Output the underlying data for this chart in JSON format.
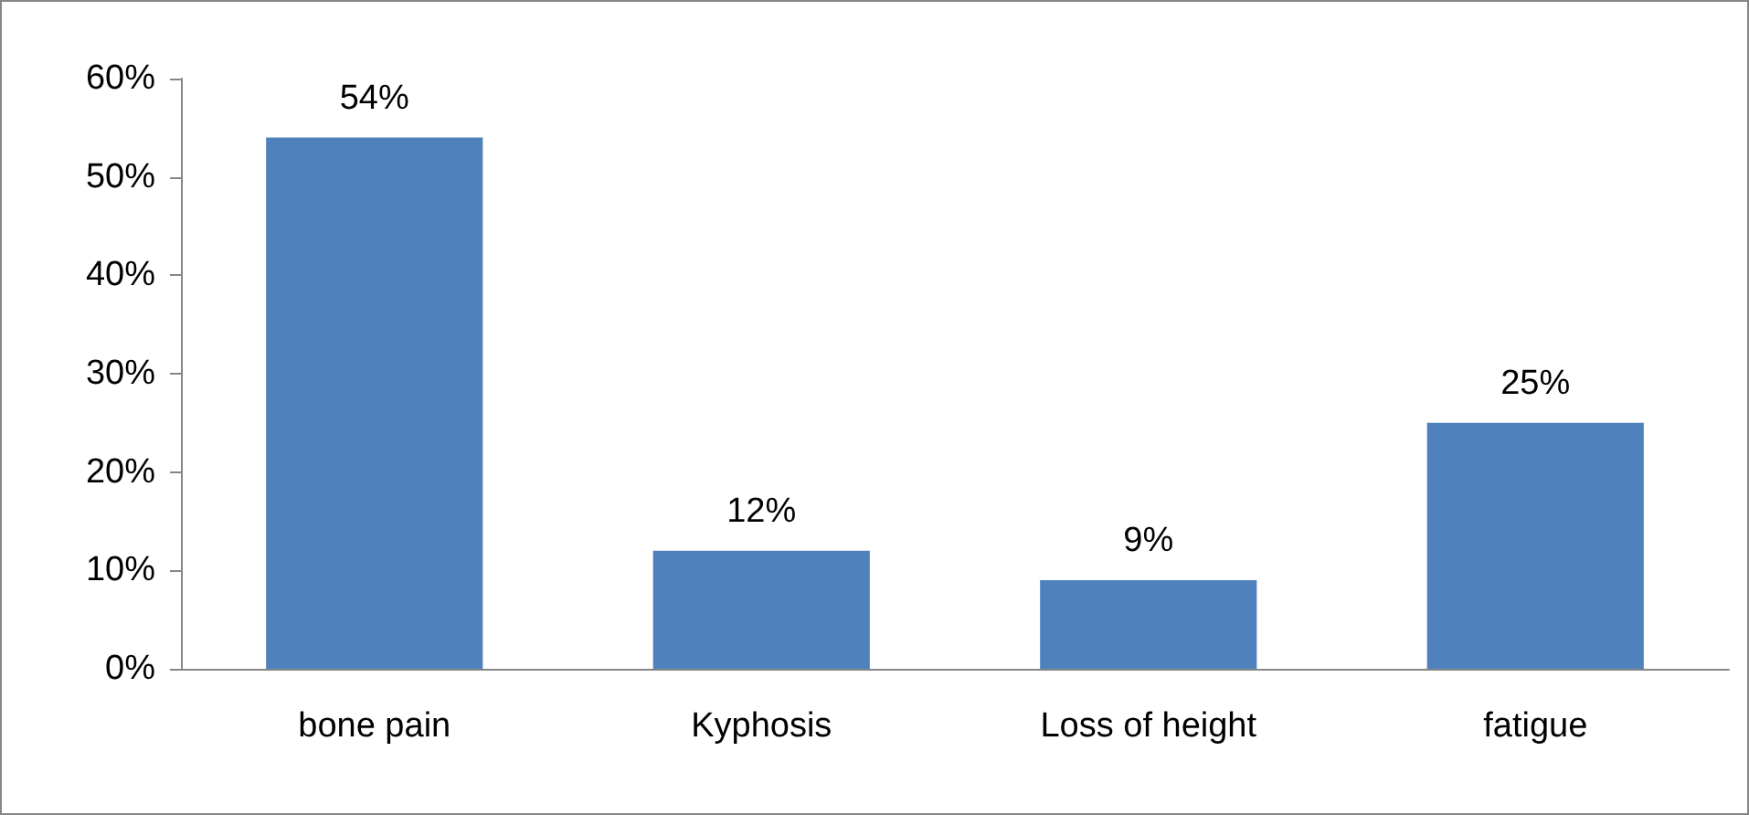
{
  "chart_data": {
    "type": "bar",
    "categories": [
      "bone pain",
      "Kyphosis",
      "Loss of height",
      "fatigue"
    ],
    "values": [
      54,
      12,
      9,
      25
    ],
    "color": "#4f81bd",
    "value_labels": [
      "54%",
      "12%",
      "9%",
      "25%"
    ],
    "ylim": [
      0,
      60
    ],
    "yticks": [
      {
        "value": 0,
        "label": "0%"
      },
      {
        "value": 10,
        "label": "10%"
      },
      {
        "value": 20,
        "label": "20%"
      },
      {
        "value": 30,
        "label": "30%"
      },
      {
        "value": 40,
        "label": "40%"
      },
      {
        "value": 50,
        "label": "50%"
      },
      {
        "value": 60,
        "label": "60%"
      }
    ],
    "grid": false
  }
}
